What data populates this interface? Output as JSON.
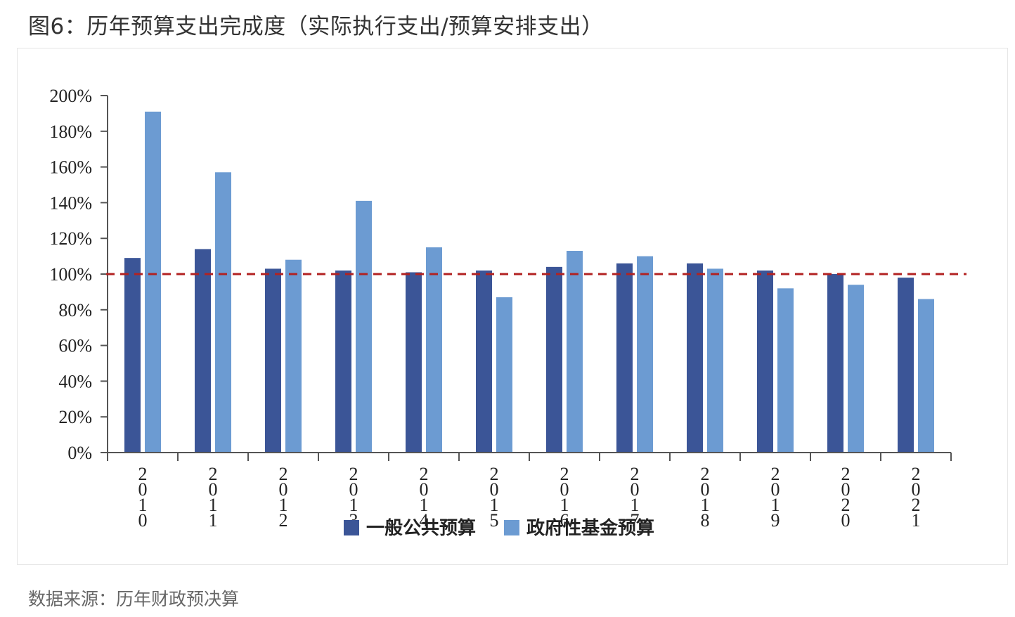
{
  "title": "图6：历年预算支出完成度（实际执行支出/预算安排支出）",
  "source": "数据来源：历年财政预决算",
  "colors": {
    "series1": "#3B5597",
    "series2": "#6C9BD2",
    "refline": "#B22222",
    "axis": "#555555"
  },
  "chart_data": {
    "type": "bar",
    "title": "",
    "xlabel": "",
    "ylabel": "",
    "categories": [
      "2010",
      "2011",
      "2012",
      "2013",
      "2014",
      "2015",
      "2016",
      "2017",
      "2018",
      "2019",
      "2020",
      "2021"
    ],
    "series": [
      {
        "name": "一般公共预算",
        "values": [
          109,
          114,
          103,
          102,
          101,
          102,
          104,
          106,
          106,
          102,
          100,
          98
        ]
      },
      {
        "name": "政府性基金预算",
        "values": [
          191,
          157,
          108,
          141,
          115,
          87,
          113,
          110,
          103,
          92,
          94,
          86
        ]
      }
    ],
    "ylim": [
      0,
      200
    ],
    "yticks": [
      "0%",
      "20%",
      "40%",
      "60%",
      "80%",
      "100%",
      "120%",
      "140%",
      "160%",
      "180%",
      "200%"
    ],
    "reference_line": {
      "value": 100,
      "style": "dashed"
    },
    "legend_position": "bottom-center",
    "grid": false
  }
}
